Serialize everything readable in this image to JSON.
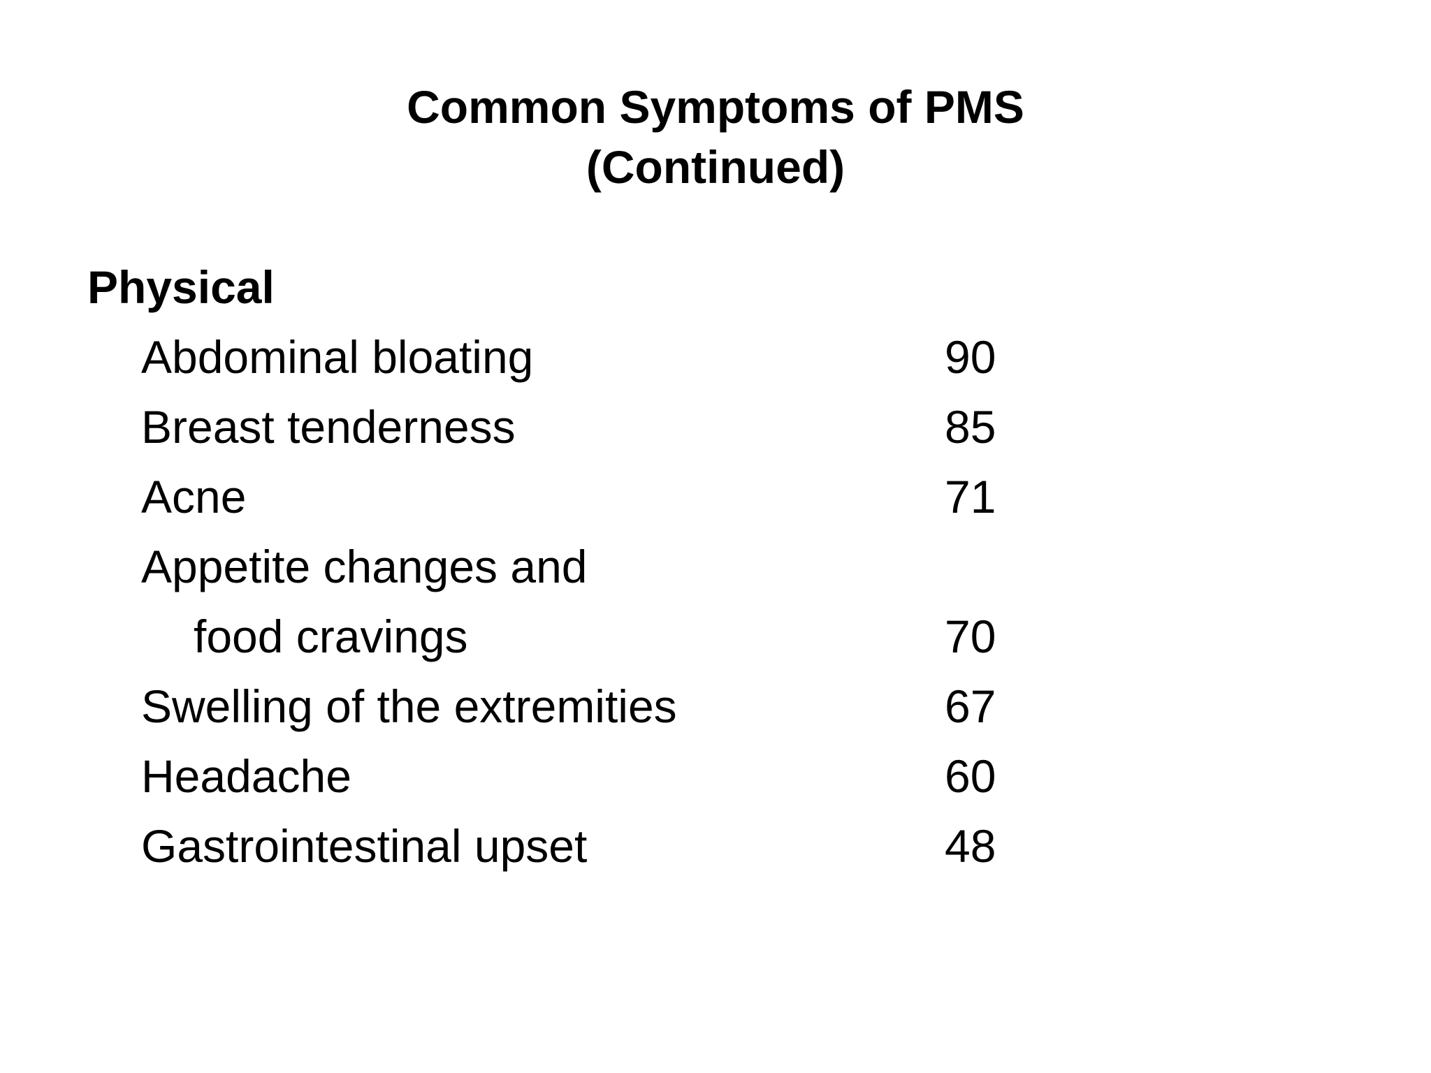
{
  "slide": {
    "title": {
      "line1": "Common Symptoms of PMS",
      "line2": "(Continued)"
    },
    "section": {
      "heading": "Physical"
    },
    "symptoms": {
      "rows": [
        {
          "label": "Abdominal bloating",
          "value": "90"
        },
        {
          "label": "Breast tenderness",
          "value": "85"
        },
        {
          "label": "Acne",
          "value": "71"
        },
        {
          "label": "Appetite changes and",
          "value": ""
        },
        {
          "label": "food cravings",
          "value": "70"
        },
        {
          "label": "Swelling of the extremities",
          "value": "67"
        },
        {
          "label": "Headache",
          "value": "60"
        },
        {
          "label": "Gastrointestinal upset",
          "value": "48"
        }
      ]
    },
    "colors": {
      "background": "#ffffff",
      "text": "#000000"
    }
  }
}
